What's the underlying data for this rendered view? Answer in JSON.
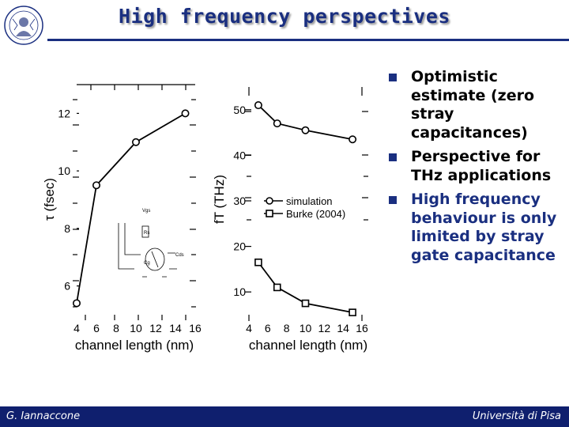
{
  "header": {
    "title": "High frequency perspectives"
  },
  "bullets": [
    {
      "text": "Optimistic estimate (zero stray capacitances)",
      "highlight": false
    },
    {
      "text": "Perspective for THz applications",
      "highlight": false
    },
    {
      "text": "High frequency behaviour is only limited by stray gate capacitance",
      "highlight": true
    }
  ],
  "footer": {
    "author": "G. Iannaccone",
    "institution": "Università di Pisa"
  },
  "colors": {
    "accent": "#1a2f80",
    "footer_bg": "#0f1f6e"
  },
  "chart_data": [
    {
      "type": "line",
      "title": "",
      "xlabel": "channel length (nm)",
      "ylabel": "τ (fsec)",
      "xlim": [
        4,
        16
      ],
      "ylim": [
        5,
        13
      ],
      "x_ticks": [
        "4",
        "6",
        "8",
        "10",
        "12",
        "14",
        "16"
      ],
      "y_ticks": [
        "6",
        "8",
        "10",
        "12"
      ],
      "series": [
        {
          "name": "τ",
          "marker": "circle",
          "x": [
            4,
            6,
            10,
            15
          ],
          "y": [
            5.4,
            9.5,
            11.0,
            12.0
          ]
        }
      ]
    },
    {
      "type": "line",
      "title": "",
      "xlabel": "channel length (nm)",
      "ylabel": "fT (THz)",
      "xlim": [
        4,
        16
      ],
      "ylim": [
        5,
        55
      ],
      "x_ticks": [
        "4",
        "6",
        "8",
        "10",
        "12",
        "14",
        "16"
      ],
      "y_ticks": [
        "10",
        "20",
        "30",
        "40",
        "50"
      ],
      "series": [
        {
          "name": "simulation",
          "marker": "circle",
          "x": [
            5,
            7,
            10,
            15
          ],
          "y": [
            51,
            47,
            45.5,
            43.5
          ]
        },
        {
          "name": "Burke (2004)",
          "marker": "square",
          "x": [
            5,
            7,
            10,
            15
          ],
          "y": [
            16.5,
            11,
            7.5,
            5.5
          ]
        }
      ]
    }
  ]
}
